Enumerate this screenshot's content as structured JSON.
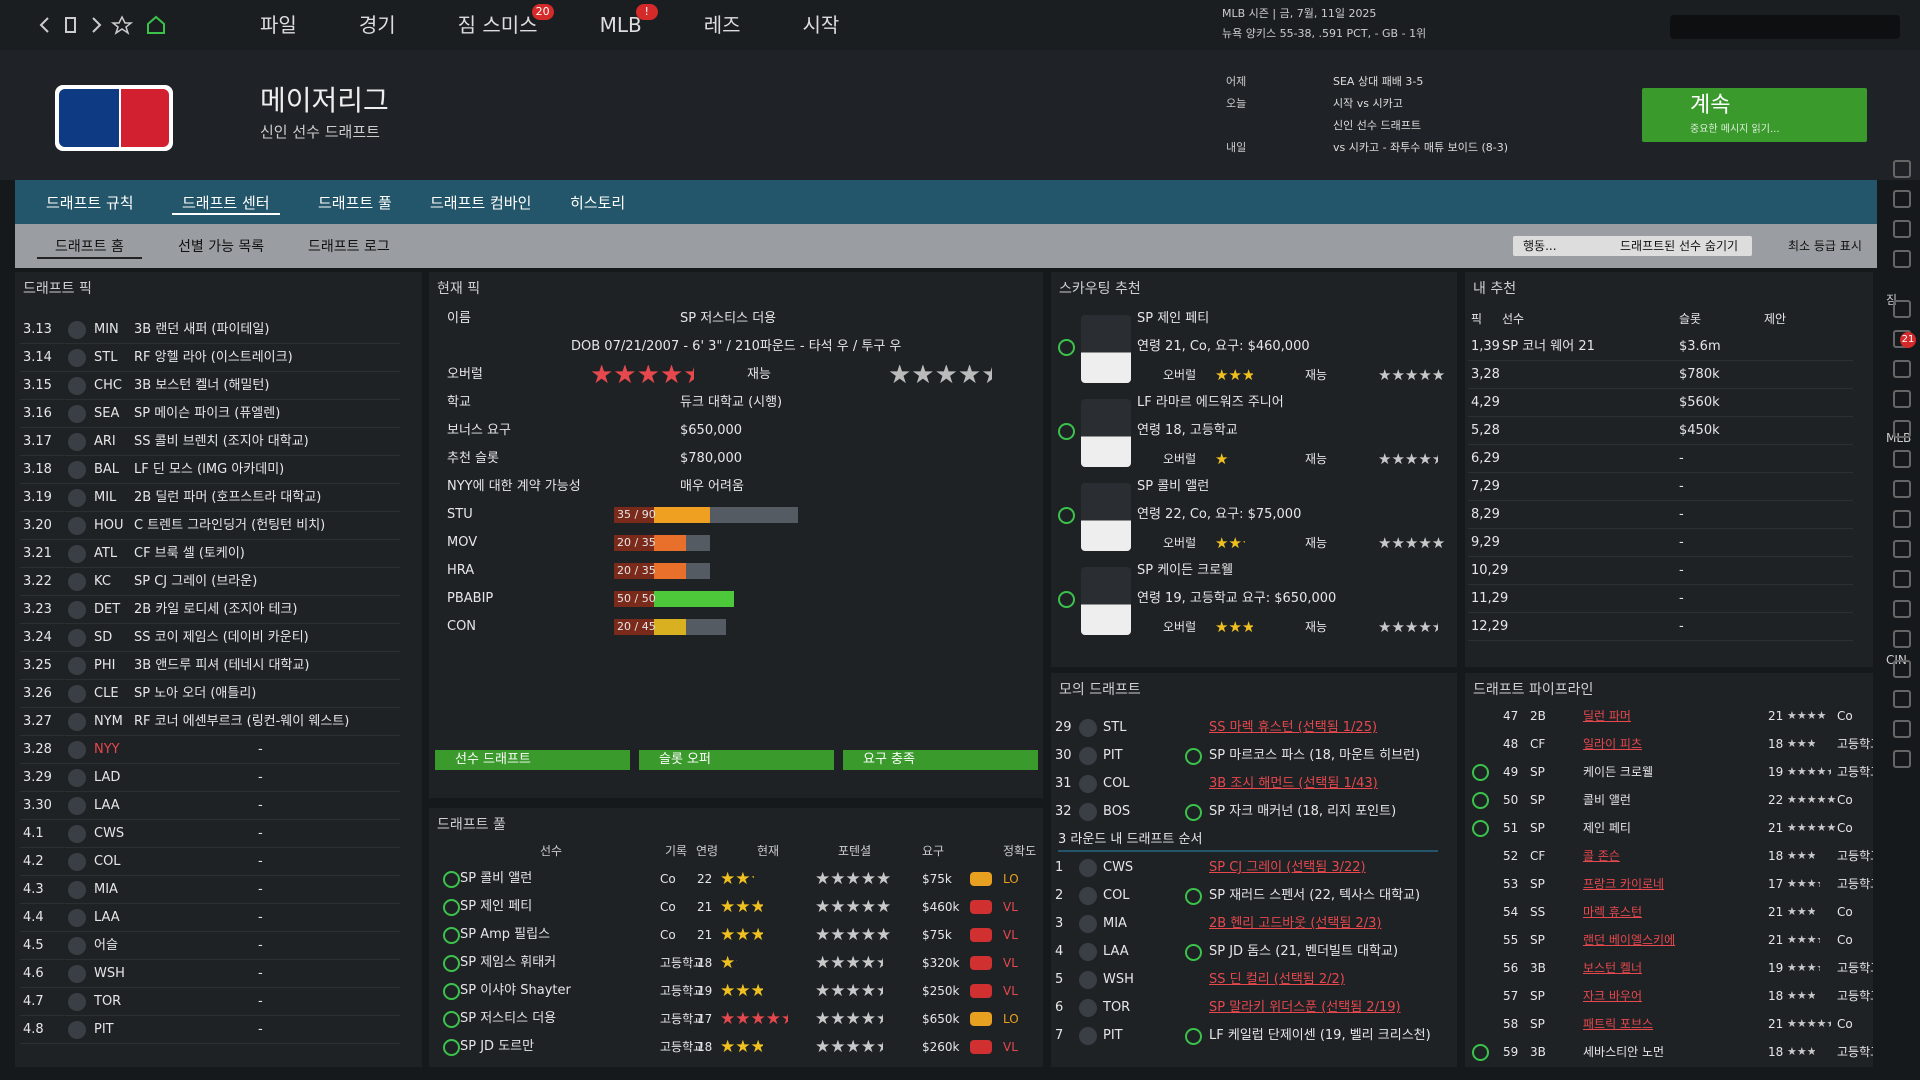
{
  "topbar": {
    "menu": [
      {
        "label": "파일"
      },
      {
        "label": "경기"
      },
      {
        "label": "짐 스미스",
        "badge": "20"
      },
      {
        "label": "MLB",
        "badge": "!"
      },
      {
        "label": "레즈"
      },
      {
        "label": "시작"
      }
    ],
    "season": [
      "MLB 시즌 | 금, 7월, 11일 2025",
      "뉴욕 양키스 55-38, .591 PCT, - GB - 1위"
    ]
  },
  "header": {
    "title": "메이저리그",
    "subtitle": "신인 선수 드래프트"
  },
  "schedule": [
    {
      "day": "어제",
      "text": "SEA 상대 패배 3-5"
    },
    {
      "day": "오늘",
      "text": "시작 vs 시카고"
    },
    {
      "text": "신인 선수 드래프트"
    },
    {
      "day": "내일",
      "text": "vs 시카고 - 좌투수 매튜 보이드 (8-3)"
    }
  ],
  "continue_button": {
    "label": "계속",
    "hint": "중요한 메시지 읽기..."
  },
  "tabs": [
    {
      "label": "드래프트 규칙"
    },
    {
      "label": "드래프트 센터",
      "active": true
    },
    {
      "label": "드래프트 풀"
    },
    {
      "label": "드래프트 컴바인"
    },
    {
      "label": "히스토리"
    }
  ],
  "subtabs": [
    {
      "label": "드래프트 홈",
      "active": true
    },
    {
      "label": "선별 가능 목록"
    },
    {
      "label": "드래프트 로그"
    }
  ],
  "toolbar": {
    "action": "행동...",
    "hide_button": "드래프트된 선수 숨기기",
    "checkbox": "최소 등급 표시"
  },
  "draft_picks": {
    "title": "드래프트 픽",
    "rows": [
      {
        "pick": "3.13",
        "team": "MIN",
        "player": "3B 랜던 새퍼 (파이테일)"
      },
      {
        "pick": "3.14",
        "team": "STL",
        "player": "RF 앙헬 라아 (이스트레이크)"
      },
      {
        "pick": "3.15",
        "team": "CHC",
        "player": "3B 보스턴 켈너 (해밀턴)"
      },
      {
        "pick": "3.16",
        "team": "SEA",
        "player": "SP 메이슨 파이크 (퓨엘렌)"
      },
      {
        "pick": "3.17",
        "team": "ARI",
        "player": "SS 콜비 브렌치 (조지아 대학교)"
      },
      {
        "pick": "3.18",
        "team": "BAL",
        "player": "LF 딘 모스 (IMG 아카데미)"
      },
      {
        "pick": "3.19",
        "team": "MIL",
        "player": "2B 딜런 파머 (호프스트라 대학교)"
      },
      {
        "pick": "3.20",
        "team": "HOU",
        "player": "C 트렌트 그라인딩거 (헌팅턴 비치)"
      },
      {
        "pick": "3.21",
        "team": "ATL",
        "player": "CF 브룩 셀 (토케이)"
      },
      {
        "pick": "3.22",
        "team": "KC",
        "player": "SP CJ 그레이 (브라운)"
      },
      {
        "pick": "3.23",
        "team": "DET",
        "player": "2B 카일 로디세 (조지아 테크)"
      },
      {
        "pick": "3.24",
        "team": "SD",
        "player": "SS 코이 제임스 (데이비 카운티)"
      },
      {
        "pick": "3.25",
        "team": "PHI",
        "player": "3B 앤드루 피셔 (테네시 대학교)"
      },
      {
        "pick": "3.26",
        "team": "CLE",
        "player": "SP 노아 오더 (애틀리)"
      },
      {
        "pick": "3.27",
        "team": "NYM",
        "player": "RF 코너 에센부르크 (링컨-웨이 웨스트)"
      },
      {
        "pick": "3.28",
        "team": "NYY",
        "player": "-",
        "highlight": true
      },
      {
        "pick": "3.29",
        "team": "LAD",
        "player": "-"
      },
      {
        "pick": "3.30",
        "team": "LAA",
        "player": "-"
      },
      {
        "pick": "4.1",
        "team": "CWS",
        "player": "-"
      },
      {
        "pick": "4.2",
        "team": "COL",
        "player": "-"
      },
      {
        "pick": "4.3",
        "team": "MIA",
        "player": "-"
      },
      {
        "pick": "4.4",
        "team": "LAA",
        "player": "-"
      },
      {
        "pick": "4.5",
        "team": "어슬",
        "player": "-"
      },
      {
        "pick": "4.6",
        "team": "WSH",
        "player": "-"
      },
      {
        "pick": "4.7",
        "team": "TOR",
        "player": "-"
      },
      {
        "pick": "4.8",
        "team": "PIT",
        "player": "-"
      }
    ]
  },
  "current_pick": {
    "title": "현재 픽",
    "name_label": "이름",
    "name": "SP 저스티스 더용",
    "bio": "DOB 07/21/2007 - 6' 3\" / 210파운드 - 타석 우 / 투구 우",
    "overall_label": "오버럴",
    "overall": 4,
    "talent_label": "재능",
    "talent": 4,
    "fields": [
      {
        "label": "학교",
        "value": "듀크 대학교 (시행)"
      },
      {
        "label": "보너스 요구",
        "value": "$650,000"
      },
      {
        "label": "추천 슬롯",
        "value": "$780,000"
      },
      {
        "label": "NYY에 대한 계약 가능성",
        "value": "매우 어려움"
      }
    ],
    "ratings": [
      {
        "name": "STU",
        "label": "35 / 90",
        "current": 35,
        "potential": 90,
        "color": "#f0a020"
      },
      {
        "name": "MOV",
        "label": "20 / 35",
        "current": 20,
        "potential": 35,
        "color": "#e8702a"
      },
      {
        "name": "HRA",
        "label": "20 / 35",
        "current": 20,
        "potential": 35,
        "color": "#e8702a"
      },
      {
        "name": "PBABIP",
        "label": "50 / 50",
        "current": 50,
        "potential": 50,
        "color": "#4cc83a"
      },
      {
        "name": "CON",
        "label": "20 / 45",
        "current": 20,
        "potential": 45,
        "color": "#d8b020"
      }
    ],
    "buttons": [
      "선수 드래프트",
      "슬롯 오퍼",
      "요구 충족"
    ]
  },
  "draft_pool": {
    "title": "드래프트 풀",
    "columns": [
      "선수",
      "기록",
      "연령",
      "현재",
      "포텐셜",
      "요구",
      "정확도"
    ],
    "rows": [
      {
        "player": "SP 콜비 앨런",
        "record": "Co",
        "age": 22,
        "current": 2,
        "potential": 5,
        "demand": "$75k",
        "accuracy": "LO"
      },
      {
        "player": "SP 제인 페티",
        "record": "Co",
        "age": 21,
        "current": 2.5,
        "potential": 5,
        "demand": "$460k",
        "accuracy": "VL"
      },
      {
        "player": "SP Amp 필립스",
        "record": "Co",
        "age": 21,
        "current": 2.5,
        "potential": 5,
        "demand": "$75k",
        "accuracy": "VL"
      },
      {
        "player": "SP 제임스 휘태커",
        "record": "고등학교",
        "age": 18,
        "current": 1,
        "potential": 4,
        "demand": "$320k",
        "accuracy": "VL"
      },
      {
        "player": "SP 이샤야 Shayter",
        "record": "고등학교",
        "age": 19,
        "current": 2.5,
        "potential": 4,
        "demand": "$250k",
        "accuracy": "VL"
      },
      {
        "player": "SP 저스티스 더용",
        "record": "고등학교",
        "age": 17,
        "current": 4,
        "potential": 4,
        "demand": "$650k",
        "accuracy": "LO",
        "highlight": true
      },
      {
        "player": "SP JD 도르만",
        "record": "고등학교",
        "age": 18,
        "current": 2.5,
        "potential": 4,
        "demand": "$260k",
        "accuracy": "VL"
      }
    ]
  },
  "scouting": {
    "title": "스카우팅 추천",
    "overall_label": "오버럴",
    "talent_label": "재능",
    "players": [
      {
        "name": "SP 제인 페티",
        "info": "연령 21, Co, 요구: $460,000",
        "overall": 2.5,
        "talent": 5
      },
      {
        "name": "LF 라마르 에드워즈 주니어",
        "info": "연령 18, 고등학교",
        "overall": 1,
        "talent": 4
      },
      {
        "name": "SP 콜비 앨런",
        "info": "연령 22, Co, 요구: $75,000",
        "overall": 2,
        "talent": 5
      },
      {
        "name": "SP 케이든 크로웰",
        "info": "연령 19, 고등학교 요구: $650,000",
        "overall": 2.5,
        "talent": 4
      }
    ]
  },
  "my_recommendations": {
    "title": "내 추천",
    "columns": [
      "픽",
      "선수",
      "슬롯",
      "제안"
    ],
    "rows": [
      {
        "pick": "1,39",
        "player": "SP 코너 웨어 21",
        "slot": "$3.6m"
      },
      {
        "pick": "3,28",
        "slot": "$780k"
      },
      {
        "pick": "4,29",
        "slot": "$560k"
      },
      {
        "pick": "5,28",
        "slot": "$450k"
      },
      {
        "pick": "6,29",
        "slot": "-"
      },
      {
        "pick": "7,29",
        "slot": "-"
      },
      {
        "pick": "8,29",
        "slot": "-"
      },
      {
        "pick": "9,29",
        "slot": "-"
      },
      {
        "pick": "10,29",
        "slot": "-"
      },
      {
        "pick": "11,29",
        "slot": "-"
      },
      {
        "pick": "12,29",
        "slot": "-"
      }
    ]
  },
  "mock_draft": {
    "title": "모의 드래프트",
    "rows": [
      {
        "no": 29,
        "team": "STL",
        "player": "SS 마렉 휴스턴 (선택됨 1/25)",
        "taken": true
      },
      {
        "no": 30,
        "team": "PIT",
        "player": "SP 마르코스 파스 (18, 마운트 히브런)"
      },
      {
        "no": 31,
        "team": "COL",
        "player": "3B 조시 해먼드 (선택됨 1/43)",
        "taken": true
      },
      {
        "no": 32,
        "team": "BOS",
        "player": "SP 자크 매커넌 (18, 리지 포인트)"
      }
    ],
    "section": "3 라운드 내 드래프트 순서",
    "round_rows": [
      {
        "no": 1,
        "team": "CWS",
        "player": "SP CJ 그레이 (선택됨 3/22)",
        "taken": true
      },
      {
        "no": 2,
        "team": "COL",
        "player": "SP 재러드 스펜서 (22, 텍사스 대학교)"
      },
      {
        "no": 3,
        "team": "MIA",
        "player": "2B 헨리 고드바웃 (선택됨 2/3)",
        "taken": true
      },
      {
        "no": 4,
        "team": "LAA",
        "player": "SP JD 돔스 (21, 벤더빌트 대학교)"
      },
      {
        "no": 5,
        "team": "WSH",
        "player": "SS 딘 컬리 (선택됨 2/2)",
        "taken": true
      },
      {
        "no": 6,
        "team": "TOR",
        "player": "SP 말라키 위더스푼 (선택됨 2/19)",
        "taken": true
      },
      {
        "no": 7,
        "team": "PIT",
        "player": "LF 케일럽 단제이센 (19, 벨리 크리스천)"
      }
    ]
  },
  "pipeline": {
    "title": "드래프트 파이프라인",
    "rows": [
      {
        "no": 47,
        "pos": "2B",
        "name": "딜런 파머",
        "age": 21,
        "potential": 3.5,
        "school": "Co",
        "taken": true
      },
      {
        "no": 48,
        "pos": "CF",
        "name": "일라이 피츠",
        "age": 18,
        "potential": 2.5,
        "school": "고등학교",
        "taken": true
      },
      {
        "no": 49,
        "pos": "SP",
        "name": "케이든 크로웰",
        "age": 19,
        "potential": 4,
        "school": "고등학교"
      },
      {
        "no": 50,
        "pos": "SP",
        "name": "콜비 앨런",
        "age": 22,
        "potential": 5,
        "school": "Co"
      },
      {
        "no": 51,
        "pos": "SP",
        "name": "제인 페티",
        "age": 21,
        "potential": 5,
        "school": "Co"
      },
      {
        "no": 52,
        "pos": "CF",
        "name": "콜 존슨",
        "age": 18,
        "potential": 2.5,
        "school": "고등학교",
        "taken": true
      },
      {
        "no": 53,
        "pos": "SP",
        "name": "프랑크 카이로네",
        "age": 17,
        "potential": 3,
        "school": "고등학교",
        "taken": true
      },
      {
        "no": 54,
        "pos": "SS",
        "name": "마렉 휴스턴",
        "age": 21,
        "potential": 2.5,
        "school": "Co",
        "taken": true
      },
      {
        "no": 55,
        "pos": "SP",
        "name": "랜던 베이엘스키에",
        "age": 21,
        "potential": 3,
        "school": "Co",
        "taken": true
      },
      {
        "no": 56,
        "pos": "3B",
        "name": "보스턴 켈너",
        "age": 19,
        "potential": 3,
        "school": "고등학교",
        "taken": true
      },
      {
        "no": 57,
        "pos": "SP",
        "name": "자크 바우어",
        "age": 18,
        "potential": 2.5,
        "school": "고등학교",
        "taken": true
      },
      {
        "no": 58,
        "pos": "SP",
        "name": "패트릭 포브스",
        "age": 21,
        "potential": 4,
        "school": "Co",
        "taken": true
      },
      {
        "no": 59,
        "pos": "3B",
        "name": "세바스티안 노먼",
        "age": 18,
        "potential": 2.5,
        "school": "고등학교"
      }
    ]
  },
  "sidebar": {
    "labels": [
      "짐",
      "MLB",
      "CIN"
    ],
    "badge": "21"
  }
}
